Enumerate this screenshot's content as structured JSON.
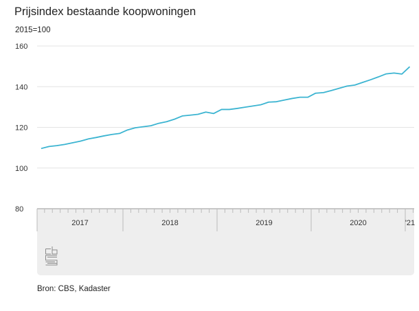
{
  "chart_data": {
    "type": "line",
    "title": "Prijsindex bestaande koopwoningen",
    "ylabel": "2015=100",
    "ylim": [
      80,
      160
    ],
    "yticks": [
      80,
      100,
      120,
      140,
      160
    ],
    "xtick_labels": [
      "2017",
      "2018",
      "2019",
      "2020",
      "'21"
    ],
    "grid": true,
    "line_color": "#3bb4d1",
    "x": [
      "2017-02",
      "2017-03",
      "2017-04",
      "2017-05",
      "2017-06",
      "2017-07",
      "2017-08",
      "2017-09",
      "2017-10",
      "2017-11",
      "2017-12",
      "2018-01",
      "2018-02",
      "2018-03",
      "2018-04",
      "2018-05",
      "2018-06",
      "2018-07",
      "2018-08",
      "2018-09",
      "2018-10",
      "2018-11",
      "2018-12",
      "2019-01",
      "2019-02",
      "2019-03",
      "2019-04",
      "2019-05",
      "2019-06",
      "2019-07",
      "2019-08",
      "2019-09",
      "2019-10",
      "2019-11",
      "2019-12",
      "2020-01",
      "2020-02",
      "2020-03",
      "2020-04",
      "2020-05",
      "2020-06",
      "2020-07",
      "2020-08",
      "2020-09",
      "2020-10",
      "2020-11",
      "2020-12",
      "2021-01"
    ],
    "values": [
      109.6,
      110.6,
      111.0,
      111.6,
      112.4,
      113.2,
      114.3,
      115.0,
      115.8,
      116.5,
      117.0,
      118.7,
      119.8,
      120.3,
      120.8,
      122.0,
      122.8,
      124.0,
      125.6,
      126.0,
      126.4,
      127.5,
      126.8,
      128.8,
      128.8,
      129.3,
      129.9,
      130.5,
      131.1,
      132.4,
      132.6,
      133.4,
      134.2,
      134.8,
      134.8,
      136.8,
      137.1,
      138.1,
      139.2,
      140.3,
      140.8,
      142.1,
      143.4,
      144.8,
      146.3,
      146.7,
      146.2,
      149.8
    ]
  },
  "source": "Bron: CBS, Kadaster",
  "logo_text": "cbs"
}
